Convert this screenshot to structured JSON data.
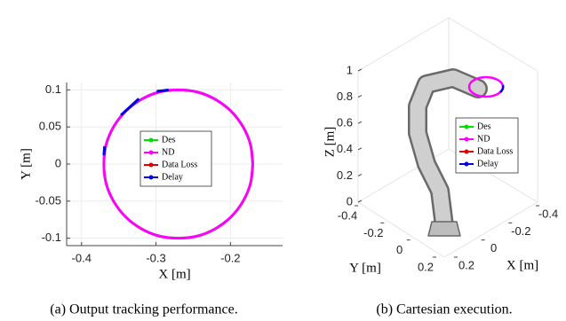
{
  "chart_data": [
    {
      "type": "line",
      "xlabel": "X [m]",
      "ylabel": "Y [m]",
      "xlim": [
        -0.42,
        -0.13
      ],
      "ylim": [
        -0.11,
        0.11
      ],
      "xticks": [
        -0.4,
        -0.3,
        -0.2
      ],
      "yticks": [
        0.1,
        0.05,
        0,
        -0.05,
        -0.1
      ],
      "grid": true,
      "series": [
        {
          "name": "Des",
          "color": "#00e000",
          "x": [
            -0.17,
            -0.173,
            -0.183,
            -0.199,
            -0.22,
            -0.244,
            -0.27,
            -0.296,
            -0.32,
            -0.341,
            -0.357,
            -0.367,
            -0.37,
            -0.367,
            -0.357,
            -0.341,
            -0.32,
            -0.296,
            -0.27,
            -0.244,
            -0.22,
            -0.199,
            -0.183,
            -0.173,
            -0.17
          ],
          "y": [
            0,
            0.026,
            0.05,
            0.071,
            0.087,
            0.097,
            0.1,
            0.097,
            0.087,
            0.071,
            0.05,
            0.026,
            0,
            -0.026,
            -0.05,
            -0.071,
            -0.087,
            -0.097,
            -0.1,
            -0.097,
            -0.087,
            -0.071,
            -0.05,
            -0.026,
            0
          ]
        },
        {
          "name": "ND",
          "color": "#ff00ff",
          "x": [
            -0.17,
            -0.173,
            -0.183,
            -0.199,
            -0.22,
            -0.244,
            -0.27,
            -0.296,
            -0.32,
            -0.341,
            -0.357,
            -0.367,
            -0.37,
            -0.367,
            -0.357,
            -0.341,
            -0.32,
            -0.296,
            -0.27,
            -0.244,
            -0.22,
            -0.199,
            -0.183,
            -0.173,
            -0.17
          ],
          "y": [
            0,
            0.026,
            0.05,
            0.071,
            0.087,
            0.097,
            0.1,
            0.097,
            0.087,
            0.071,
            0.05,
            0.026,
            0,
            -0.026,
            -0.05,
            -0.071,
            -0.087,
            -0.097,
            -0.1,
            -0.097,
            -0.087,
            -0.071,
            -0.05,
            -0.026,
            0
          ]
        },
        {
          "name": "Data Loss",
          "color": "#e00000",
          "x": [],
          "y": []
        },
        {
          "name": "Delay",
          "color": "#0000e0",
          "x": [
            -0.299,
            -0.283,
            null,
            -0.347,
            -0.323,
            null,
            -0.37,
            -0.369
          ],
          "y": [
            0.098,
            0.1,
            null,
            0.066,
            0.088,
            null,
            0.012,
            0.024
          ]
        }
      ]
    },
    {
      "type": "line3d",
      "xlabel": "X [m]",
      "ylabel": "Y [m]",
      "zlabel": "Z [m]",
      "xlim": [
        -0.4,
        0.2
      ],
      "ylim": [
        -0.4,
        0.2
      ],
      "zlim": [
        0,
        1
      ],
      "xticks": [
        -0.4,
        -0.2,
        0,
        0.2
      ],
      "yticks": [
        -0.4,
        -0.2,
        0,
        0.2
      ],
      "zticks": [
        0,
        0.2,
        0.4,
        0.6,
        0.8,
        1
      ],
      "series": [
        {
          "name": "Des",
          "color": "#00e000"
        },
        {
          "name": "ND",
          "color": "#ff00ff"
        },
        {
          "name": "Data Loss",
          "color": "#e00000"
        },
        {
          "name": "Delay",
          "color": "#0000e0"
        }
      ]
    }
  ],
  "captions": [
    "(a)  Output tracking performance.",
    "(b)  Cartesian execution."
  ]
}
